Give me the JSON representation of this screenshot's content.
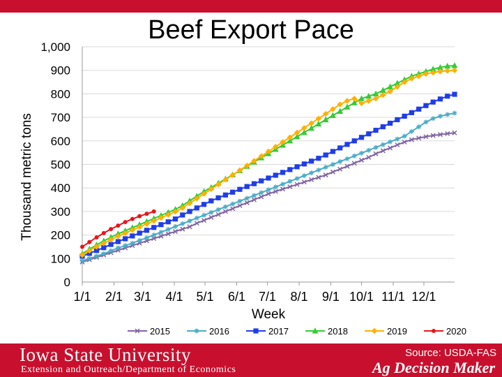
{
  "slide": {
    "title": "Beef Export Pace",
    "source": "Source: USDA-FAS",
    "footer": {
      "university": "Iowa State University",
      "department": "Extension and Outreach/Department of Economics",
      "brand": "Ag Decision Maker"
    },
    "colors": {
      "footer_bg": "#c8102e"
    }
  },
  "chart_data": {
    "type": "line",
    "title": "",
    "xlabel": "Week",
    "ylabel": "Thousand metric tons",
    "ylim": [
      0,
      1000
    ],
    "yticks": [
      "0",
      "100",
      "200",
      "300",
      "400",
      "500",
      "600",
      "700",
      "800",
      "900",
      "1,000"
    ],
    "x_range": [
      0,
      52
    ],
    "xticks": [
      {
        "label": "1/1",
        "x": 0
      },
      {
        "label": "2/1",
        "x": 4.43
      },
      {
        "label": "3/1",
        "x": 8.43
      },
      {
        "label": "4/1",
        "x": 12.86
      },
      {
        "label": "5/1",
        "x": 17.14
      },
      {
        "label": "6/1",
        "x": 21.57
      },
      {
        "label": "7/1",
        "x": 25.86
      },
      {
        "label": "8/1",
        "x": 30.29
      },
      {
        "label": "9/1",
        "x": 34.71
      },
      {
        "label": "10/1",
        "x": 39.0
      },
      {
        "label": "11/1",
        "x": 43.43
      },
      {
        "label": "12/1",
        "x": 47.71
      }
    ],
    "grid": true,
    "legend": "bottom",
    "series": [
      {
        "name": "2015",
        "color": "#8064a2",
        "marker": "x",
        "values": [
          85,
          95,
          105,
          115,
          125,
          135,
          145,
          155,
          165,
          175,
          185,
          195,
          205,
          215,
          225,
          235,
          250,
          262,
          275,
          287,
          300,
          312,
          325,
          337,
          350,
          362,
          375,
          385,
          395,
          405,
          415,
          425,
          435,
          445,
          455,
          468,
          480,
          492,
          505,
          518,
          530,
          545,
          558,
          570,
          583,
          595,
          605,
          612,
          618,
          623,
          627,
          631,
          634
        ]
      },
      {
        "name": "2016",
        "color": "#4bacc6",
        "marker": "star",
        "values": [
          90,
          100,
          110,
          120,
          133,
          145,
          155,
          165,
          177,
          188,
          200,
          212,
          224,
          236,
          248,
          260,
          272,
          284,
          296,
          308,
          320,
          332,
          344,
          356,
          368,
          380,
          392,
          404,
          416,
          428,
          440,
          452,
          464,
          476,
          488,
          500,
          512,
          524,
          536,
          548,
          560,
          572,
          584,
          596,
          608,
          620,
          640,
          660,
          680,
          695,
          705,
          712,
          718
        ]
      },
      {
        "name": "2017",
        "color": "#1f3de8",
        "marker": "square",
        "values": [
          110,
          122,
          134,
          146,
          160,
          172,
          184,
          196,
          208,
          220,
          232,
          244,
          256,
          268,
          285,
          300,
          315,
          330,
          345,
          358,
          370,
          382,
          394,
          406,
          418,
          430,
          442,
          454,
          466,
          478,
          490,
          502,
          514,
          526,
          540,
          555,
          570,
          585,
          600,
          615,
          630,
          645,
          660,
          675,
          690,
          705,
          720,
          735,
          750,
          765,
          778,
          790,
          798
        ]
      },
      {
        "name": "2018",
        "color": "#33cc33",
        "marker": "triangle",
        "values": [
          120,
          140,
          158,
          175,
          190,
          205,
          218,
          231,
          244,
          257,
          270,
          283,
          296,
          309,
          325,
          345,
          365,
          385,
          402,
          420,
          438,
          456,
          474,
          492,
          510,
          528,
          546,
          564,
          582,
          600,
          618,
          636,
          654,
          672,
          690,
          708,
          726,
          744,
          762,
          780,
          790,
          800,
          815,
          830,
          845,
          860,
          875,
          885,
          895,
          905,
          912,
          918,
          920
        ]
      },
      {
        "name": "2019",
        "color": "#ffb000",
        "marker": "diamond",
        "values": [
          115,
          133,
          150,
          165,
          180,
          195,
          208,
          221,
          234,
          247,
          260,
          273,
          286,
          299,
          315,
          335,
          355,
          375,
          395,
          415,
          435,
          455,
          475,
          495,
          515,
          535,
          555,
          575,
          595,
          615,
          635,
          655,
          675,
          695,
          715,
          735,
          755,
          770,
          780,
          760,
          770,
          780,
          795,
          810,
          830,
          850,
          865,
          875,
          885,
          890,
          895,
          898,
          900
        ]
      },
      {
        "name": "2020",
        "color": "#e8141a",
        "marker": "circle",
        "values": [
          150,
          170,
          190,
          208,
          225,
          240,
          255,
          268,
          280,
          290,
          300
        ]
      }
    ]
  }
}
